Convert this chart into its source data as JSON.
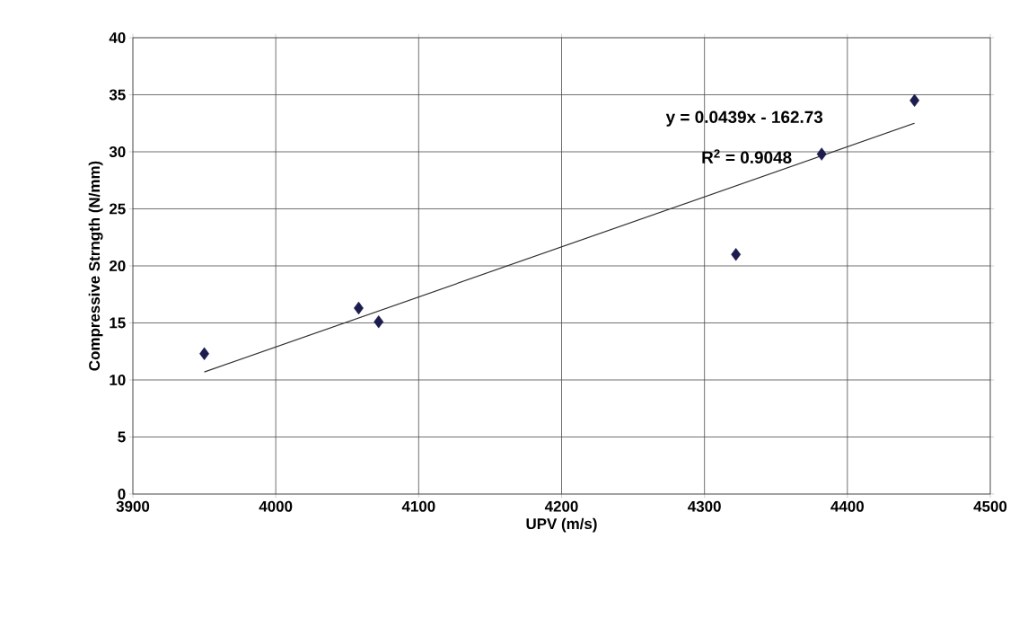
{
  "chart_data": {
    "type": "scatter",
    "xlabel": "UPV (m/s)",
    "ylabel": "Compressive Strngth (N/mm)",
    "xlim": [
      3900,
      4500
    ],
    "ylim": [
      0,
      40
    ],
    "xticks": [
      3900,
      4000,
      4100,
      4200,
      4300,
      4400,
      4500
    ],
    "yticks": [
      0,
      5,
      10,
      15,
      20,
      25,
      30,
      35,
      40
    ],
    "grid": true,
    "annotations": [
      "y = 0.0439x - 162.73",
      "R$^{2}$ = 0.9048"
    ],
    "series": [
      {
        "marker": "diamond",
        "color": "#1c1c4e",
        "x": [
          3950,
          4058,
          4072,
          4322,
          4382,
          4447
        ],
        "values": [
          12.3,
          16.3,
          15.1,
          21.0,
          29.8,
          34.5
        ]
      },
      {
        "type": "line",
        "color": "#303030",
        "x": [
          3950,
          4447
        ],
        "values": [
          10.7,
          32.5
        ]
      }
    ]
  }
}
